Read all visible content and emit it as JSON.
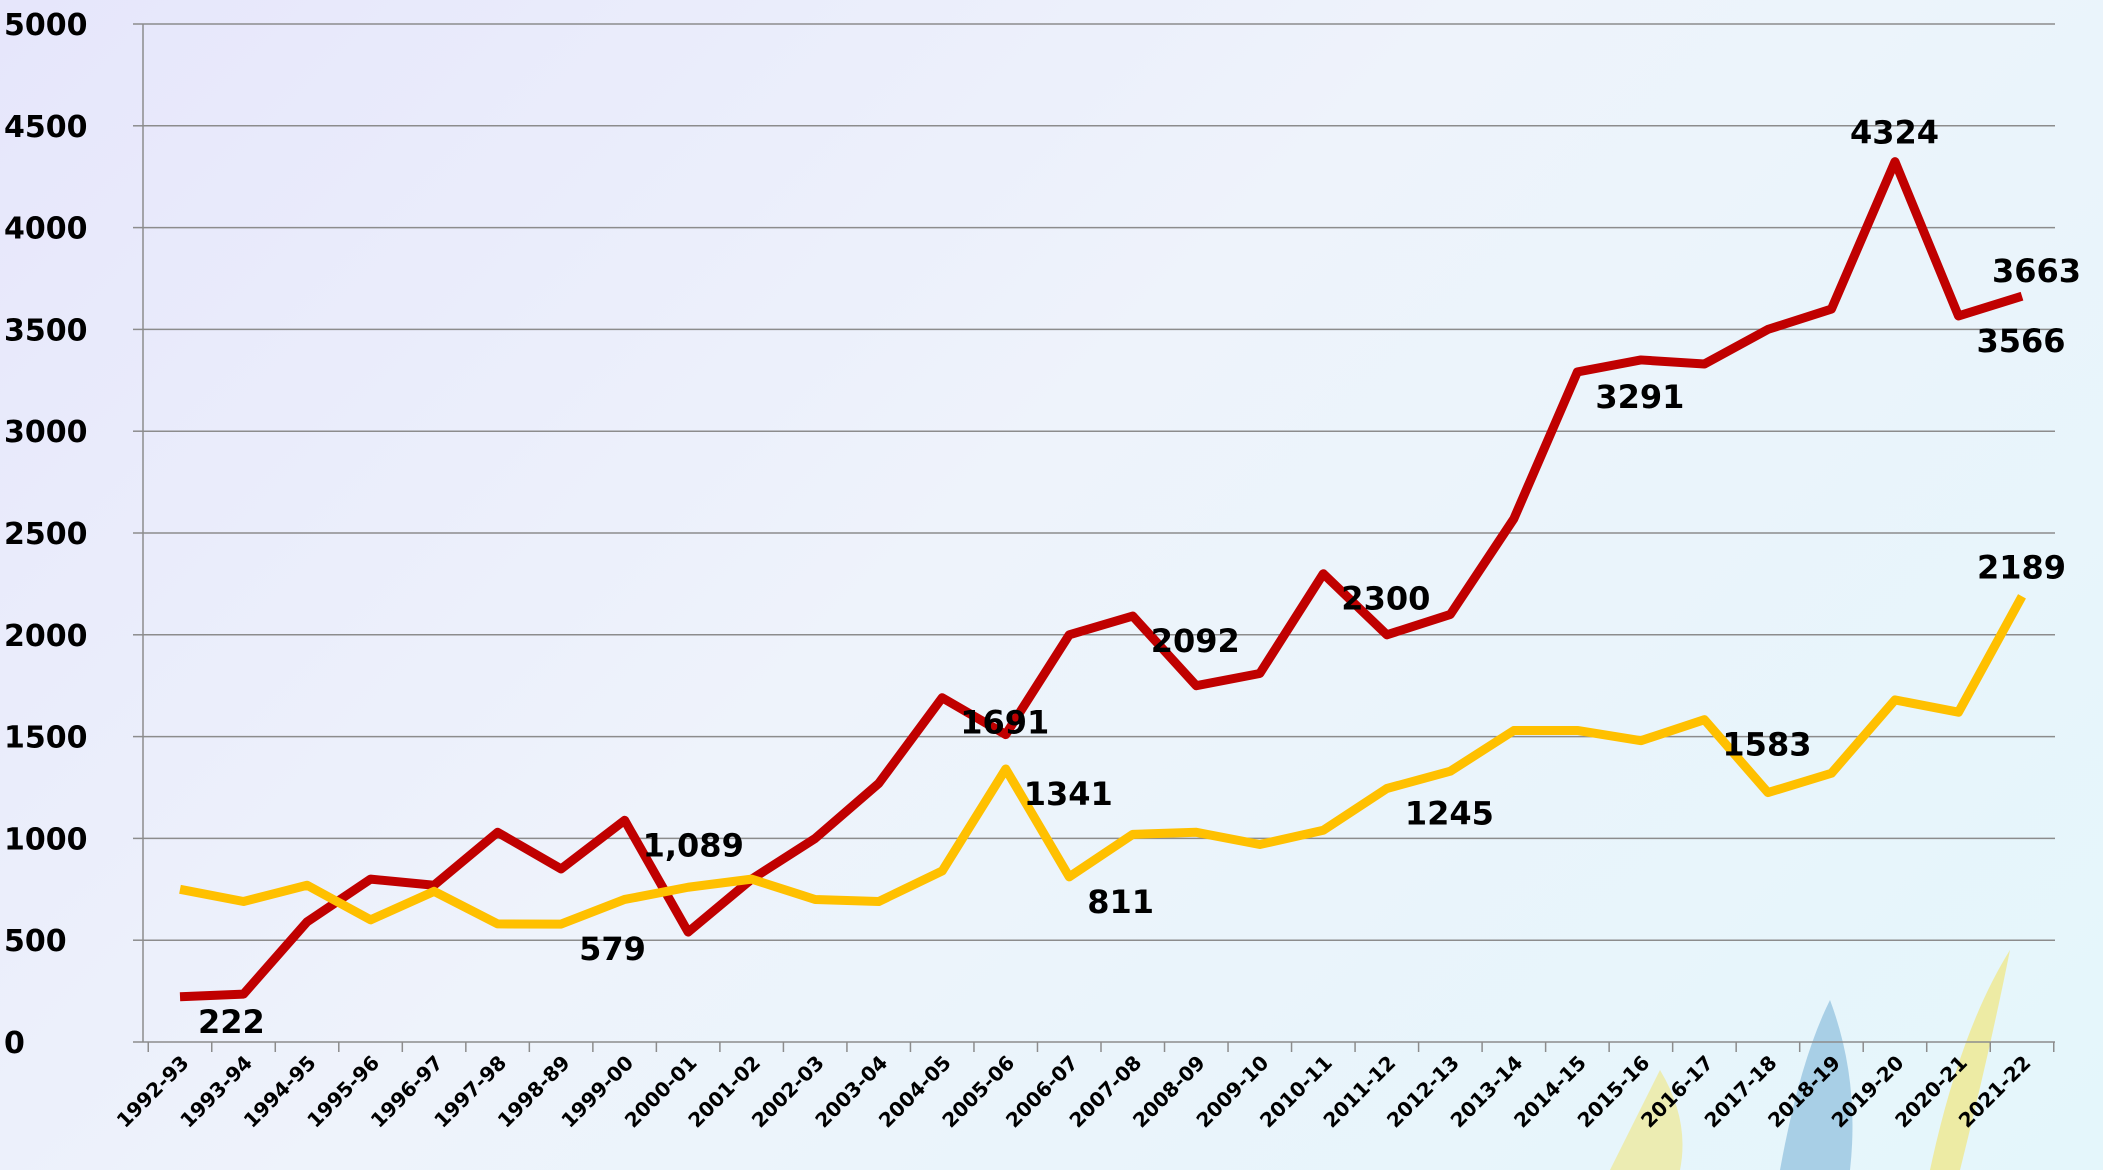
{
  "chart_data": {
    "type": "line",
    "categories": [
      "1992-93",
      "1993-94",
      "1994-95",
      "1995-96",
      "1996-97",
      "1997-98",
      "1998-89",
      "1999-00",
      "2000-01",
      "2001-02",
      "2002-03",
      "2003-04",
      "2004-05",
      "2005-06",
      "2006-07",
      "2007-08",
      "2008-09",
      "2009-10",
      "2010-11",
      "2011-12",
      "2012-13",
      "2013-14",
      "2014-15",
      "2015-16",
      "2016-17",
      "2017-18",
      "2018-19",
      "2019-20",
      "2020-21",
      "2021-22"
    ],
    "series": [
      {
        "color": "#c00000",
        "values": [
          222,
          235,
          590,
          800,
          770,
          1030,
          850,
          1089,
          540,
          800,
          1000,
          1270,
          1691,
          1510,
          2000,
          2092,
          1750,
          1810,
          2300,
          2000,
          2100,
          2570,
          3291,
          3350,
          3330,
          3500,
          3600,
          4324,
          3566,
          3663
        ],
        "value_labels": [
          "222",
          null,
          null,
          null,
          null,
          null,
          null,
          "1,089",
          null,
          null,
          null,
          null,
          "1691",
          null,
          null,
          "2092",
          null,
          null,
          "2300",
          null,
          null,
          null,
          "3291",
          null,
          null,
          null,
          null,
          "4324",
          "3566",
          "3663"
        ]
      },
      {
        "color": "#ffc000",
        "values": [
          750,
          690,
          770,
          600,
          740,
          580,
          579,
          700,
          760,
          800,
          700,
          690,
          840,
          1341,
          811,
          1020,
          1030,
          970,
          1040,
          1245,
          1330,
          1530,
          1530,
          1480,
          1583,
          1225,
          1320,
          1680,
          1620,
          2189
        ],
        "value_labels": [
          null,
          null,
          null,
          null,
          null,
          null,
          "579",
          null,
          null,
          null,
          null,
          null,
          null,
          "1341",
          "811",
          null,
          null,
          null,
          null,
          "1245",
          null,
          null,
          null,
          null,
          "1583",
          null,
          null,
          null,
          null,
          "2189"
        ]
      }
    ],
    "last_label_color": "#ff0000",
    "ylim": [
      0,
      5000
    ],
    "yticks": [
      0,
      500,
      1000,
      1500,
      2000,
      2500,
      3000,
      3500,
      4000,
      4500,
      5000
    ],
    "grid": true
  }
}
